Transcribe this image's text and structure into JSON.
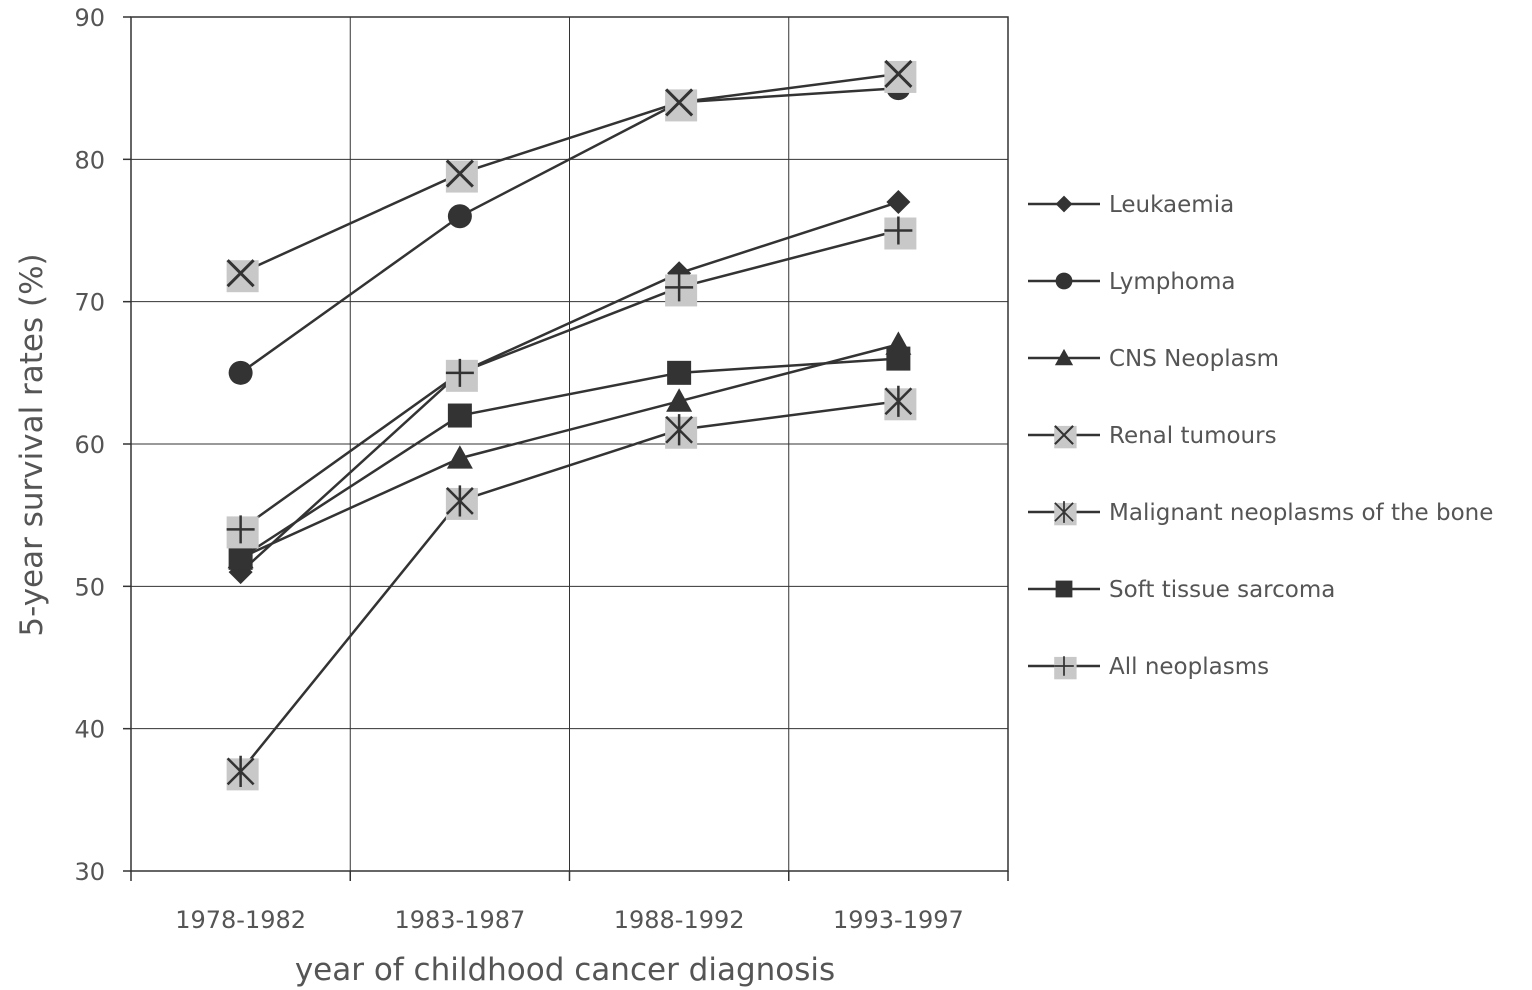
{
  "chart_data": {
    "type": "line",
    "title": "",
    "xlabel": "year of childhood cancer diagnosis",
    "ylabel": "5-year survival rates (%)",
    "ylim": [
      30,
      90
    ],
    "yticks": [
      "30",
      "40",
      "50",
      "60",
      "70",
      "80",
      "90"
    ],
    "categories": [
      "1978-1982",
      "1983-1987",
      "1988-1992",
      "1993-1997"
    ],
    "grid": true,
    "legend_position": "right",
    "series": [
      {
        "name": "Leukaemia",
        "marker": "diamond",
        "values": [
          51,
          65,
          72,
          77
        ]
      },
      {
        "name": "Lymphoma",
        "marker": "circle",
        "values": [
          65,
          76,
          84,
          85
        ]
      },
      {
        "name": "CNS Neoplasm",
        "marker": "triangle",
        "values": [
          52,
          59,
          63,
          67
        ]
      },
      {
        "name": "Renal tumours",
        "marker": "box-x",
        "values": [
          72,
          79,
          84,
          86
        ]
      },
      {
        "name": "Malignant neoplasms of the bone",
        "marker": "box-asterisk",
        "values": [
          37,
          56,
          61,
          63
        ]
      },
      {
        "name": "Soft tissue sarcoma",
        "marker": "square",
        "values": [
          52,
          62,
          65,
          66
        ]
      },
      {
        "name": "All neoplasms",
        "marker": "box-plus",
        "values": [
          54,
          65,
          71,
          75
        ]
      }
    ],
    "colors": {
      "line": "#333333",
      "marker_fill": "#333333",
      "marker_box": "#c8c8c8",
      "grid": "#333333",
      "text": "#555555"
    }
  }
}
